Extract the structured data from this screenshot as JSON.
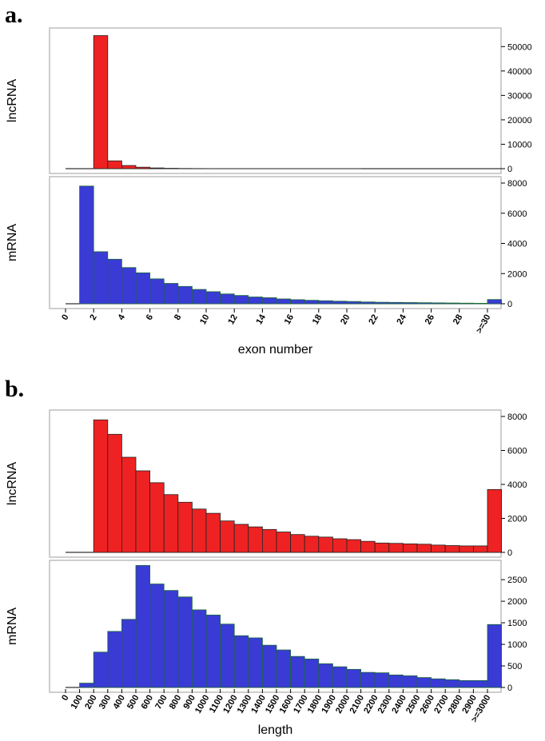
{
  "panels": {
    "a_letter": "a.",
    "b_letter": "b."
  },
  "colors": {
    "lncRNA": "#ee2222",
    "mRNA": "#3a3ad4",
    "frame": "#bdbdbd",
    "mRNA_edge": "#1a6a3a",
    "lnc_edge": "#222222"
  },
  "chart_data": [
    {
      "type": "bar",
      "panel": "a",
      "xlabel": "exon number",
      "xticks": [
        "0",
        "2",
        "4",
        "6",
        "8",
        "10",
        "12",
        "14",
        "16",
        "18",
        "20",
        "22",
        "24",
        "26",
        "28",
        ">=30"
      ],
      "categories": [
        "0",
        "1",
        "2",
        "3",
        "4",
        "5",
        "6",
        "7",
        "8",
        "9",
        "10",
        "11",
        "12",
        "13",
        "14",
        "15",
        "16",
        "17",
        "18",
        "19",
        "20",
        "21",
        "22",
        "23",
        "24",
        "25",
        "26",
        "27",
        "28",
        "29",
        ">=30"
      ],
      "series": [
        {
          "name": "lncRNA",
          "ylim": [
            0,
            55000
          ],
          "yticks": [
            0,
            10000,
            20000,
            30000,
            40000,
            50000
          ],
          "values": [
            0,
            0,
            54500,
            3200,
            1300,
            600,
            300,
            150,
            80,
            50,
            30,
            20,
            15,
            10,
            10,
            5,
            5,
            5,
            5,
            5,
            5,
            0,
            0,
            0,
            0,
            0,
            0,
            0,
            0,
            0,
            0
          ]
        },
        {
          "name": "mRNA",
          "ylim": [
            0,
            8000
          ],
          "yticks": [
            0,
            2000,
            4000,
            6000,
            8000
          ],
          "values": [
            0,
            7800,
            3450,
            2950,
            2400,
            2050,
            1650,
            1350,
            1150,
            950,
            800,
            650,
            550,
            450,
            400,
            320,
            270,
            230,
            200,
            170,
            150,
            120,
            100,
            90,
            80,
            70,
            60,
            50,
            40,
            30,
            280
          ]
        }
      ]
    },
    {
      "type": "bar",
      "panel": "b",
      "xlabel": "length",
      "categories": [
        "0",
        "100",
        "200",
        "300",
        "400",
        "500",
        "600",
        "700",
        "800",
        "900",
        "1000",
        "1100",
        "1200",
        "1300",
        "1400",
        "1500",
        "1600",
        "1700",
        "1800",
        "1900",
        "2000",
        "2100",
        "2200",
        "2300",
        "2400",
        "2500",
        "2600",
        "2700",
        "2800",
        "2900",
        ">=3000"
      ],
      "series": [
        {
          "name": "lncRNA",
          "ylim": [
            0,
            8000
          ],
          "yticks": [
            0,
            2000,
            4000,
            6000,
            8000
          ],
          "values": [
            0,
            0,
            7800,
            6950,
            5600,
            4800,
            4100,
            3400,
            2950,
            2550,
            2300,
            1850,
            1650,
            1500,
            1350,
            1200,
            1050,
            950,
            900,
            800,
            750,
            650,
            550,
            530,
            500,
            480,
            430,
            400,
            380,
            380,
            3700
          ]
        },
        {
          "name": "mRNA",
          "ylim": [
            0,
            2800
          ],
          "yticks": [
            0,
            500,
            1000,
            1500,
            2000,
            2500
          ],
          "values": [
            0,
            100,
            820,
            1300,
            1580,
            2830,
            2400,
            2250,
            2100,
            1800,
            1680,
            1470,
            1200,
            1150,
            980,
            870,
            720,
            660,
            550,
            480,
            420,
            350,
            340,
            290,
            270,
            230,
            200,
            180,
            160,
            160,
            1460
          ]
        }
      ]
    }
  ]
}
